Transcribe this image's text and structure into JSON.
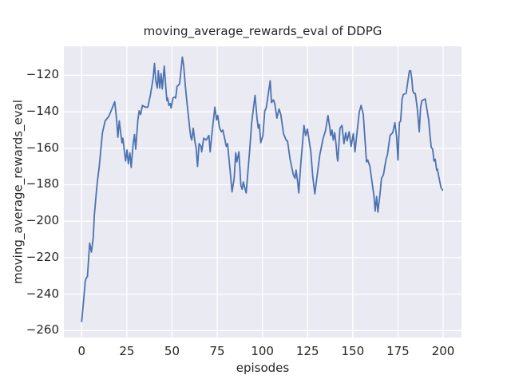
{
  "colors": {
    "figure_background": "#ffffff",
    "axes_background": "#eaeaf2",
    "grid": "#ffffff",
    "line": "#4c72b0",
    "text": "#262626"
  },
  "chart_data": {
    "type": "line",
    "title": "moving_average_rewards_eval of DDPG",
    "xlabel": "episodes",
    "ylabel": "moving_average_rewards_eval",
    "grid": true,
    "legend_position": "none",
    "style": "seaborn-darkgrid",
    "xlim": [
      -9.85,
      210.15
    ],
    "ylim": [
      -263.8,
      -104.1
    ],
    "x_ticks": [
      0,
      25,
      50,
      75,
      100,
      125,
      150,
      175,
      200
    ],
    "x_tick_labels": [
      "0",
      "25",
      "50",
      "75",
      "100",
      "125",
      "150",
      "175",
      "200"
    ],
    "y_ticks": [
      -260,
      -240,
      -220,
      -200,
      -180,
      -160,
      -140,
      -120
    ],
    "y_tick_labels": [
      "−260",
      "−240",
      "−220",
      "−200",
      "−180",
      "−160",
      "−140",
      "−120"
    ],
    "series": [
      {
        "name": "moving_average_rewards_eval",
        "color": "#4c72b0",
        "x": [
          0,
          1,
          2,
          2.6,
          3.2,
          4.4,
          5.4,
          6.4,
          7,
          8.5,
          9.7,
          11.5,
          13,
          15,
          16.5,
          18.3,
          19.3,
          20,
          20.8,
          21.4,
          22.3,
          22.8,
          23.7,
          24.3,
          25.1,
          25.8,
          26.7,
          27.4,
          28.5,
          29.2,
          29.9,
          31.1,
          31.8,
          32.6,
          33.6,
          35.1,
          36.6,
          38,
          39.5,
          40.3,
          41,
          41.9,
          42.4,
          43.2,
          43.9,
          44.6,
          45.7,
          46.6,
          47.2,
          47.6,
          48.3,
          49,
          49.5,
          50.5,
          51.3,
          52,
          52.8,
          53.5,
          54.2,
          55.7,
          56.4,
          56.9,
          57.5,
          58.3,
          59,
          59.8,
          60.4,
          60.9,
          61.7,
          62.8,
          63.3,
          64.1,
          65,
          66,
          66.4,
          67.5,
          68.9,
          70.4,
          71.1,
          72.5,
          73.7,
          74.6,
          75.3,
          76.3,
          77.3,
          78.1,
          79.3,
          80,
          80.7,
          81.5,
          82.2,
          83.2,
          84.4,
          85.2,
          85.9,
          87,
          88.1,
          88.8,
          89.4,
          91,
          91.8,
          93,
          94,
          95.9,
          97,
          97.7,
          98.3,
          99.1,
          100.3,
          101.3,
          102.1,
          104.3,
          105,
          106.1,
          106.8,
          108,
          109.2,
          110.2,
          111.7,
          113.1,
          113.9,
          115.3,
          117.1,
          118,
          118.6,
          119.5,
          120.1,
          121.3,
          122,
          123,
          123.9,
          124.9,
          126.8,
          127.8,
          129,
          130.3,
          131.8,
          133.5,
          135,
          136.3,
          137.3,
          137.8,
          138.5,
          139.2,
          140,
          140.7,
          141.4,
          141.7,
          142.9,
          144,
          145.1,
          146.1,
          146.9,
          148,
          149.1,
          150.3,
          151.2,
          152.5,
          153.6,
          154.6,
          155.8,
          156.6,
          157.6,
          158.3,
          159.5,
          161,
          161.7,
          162.4,
          163.2,
          163.9,
          165.2,
          165.9,
          167,
          168.4,
          169.2,
          170.6,
          172.1,
          173.3,
          174.3,
          175,
          175.8,
          176.5,
          177.3,
          178,
          179.5,
          181.3,
          182,
          182.7,
          183.2,
          183.9,
          184.6,
          185.7,
          186.8,
          187.5,
          188.2,
          189,
          190.1,
          192,
          192.7,
          193.4,
          194.2,
          194.9,
          195.6,
          196.4,
          196.8,
          197.8,
          198.8,
          199.7
        ],
        "y": [
          -255,
          -244,
          -233,
          -231,
          -230.5,
          -212,
          -217,
          -209,
          -197,
          -180,
          -170,
          -151.5,
          -145,
          -142.5,
          -139,
          -134.5,
          -144,
          -154,
          -145,
          -150,
          -157,
          -154.5,
          -162,
          -167,
          -161,
          -168.5,
          -162.5,
          -170.5,
          -157.5,
          -152.5,
          -160.5,
          -144.5,
          -139.5,
          -141.5,
          -136.5,
          -137.5,
          -137.5,
          -131,
          -122,
          -113.5,
          -123,
          -127,
          -117.5,
          -127,
          -119,
          -127.5,
          -115,
          -127.5,
          -134,
          -132.5,
          -136.5,
          -135.5,
          -138,
          -132.5,
          -132,
          -132.5,
          -126,
          -125.5,
          -124.5,
          -110,
          -114.5,
          -120.5,
          -127.5,
          -135.5,
          -142,
          -149.5,
          -154,
          -155.5,
          -149,
          -157.5,
          -159.5,
          -170,
          -157.5,
          -159,
          -162,
          -154.5,
          -155.5,
          -153,
          -162,
          -148,
          -137.5,
          -144.5,
          -142,
          -149,
          -151,
          -150,
          -155.5,
          -159,
          -157.5,
          -166,
          -173,
          -184,
          -176.5,
          -162.5,
          -167.5,
          -162,
          -180.5,
          -182.5,
          -178.5,
          -184.5,
          -175,
          -160.5,
          -146.5,
          -131,
          -143.5,
          -149,
          -147,
          -157,
          -153,
          -139.5,
          -138,
          -123,
          -135,
          -133.5,
          -135.5,
          -143.5,
          -138.5,
          -141.5,
          -152,
          -155.5,
          -156,
          -166,
          -174.5,
          -176.5,
          -172,
          -178.5,
          -184.5,
          -167.5,
          -159.5,
          -147.5,
          -153,
          -149.5,
          -162,
          -175,
          -185,
          -175,
          -163.5,
          -155,
          -150,
          -142,
          -149,
          -153,
          -150,
          -155.5,
          -151.5,
          -157.5,
          -165.5,
          -167,
          -149,
          -147.5,
          -157.5,
          -151.5,
          -156,
          -151,
          -159,
          -152,
          -162,
          -150,
          -140,
          -136.5,
          -141.5,
          -153,
          -167.5,
          -166.5,
          -170,
          -181,
          -186,
          -194.5,
          -186.5,
          -195,
          -184,
          -176.5,
          -174.5,
          -166,
          -163.5,
          -153,
          -151.5,
          -146,
          -154,
          -166.5,
          -146,
          -145,
          -133,
          -130.5,
          -130,
          -117.7,
          -117.5,
          -122.5,
          -128.5,
          -130,
          -130,
          -138.5,
          -151,
          -138,
          -134,
          -133.5,
          -133,
          -144.5,
          -152.5,
          -159.5,
          -160.5,
          -167,
          -166,
          -172,
          -171.5,
          -176.5,
          -181.5,
          -183
        ]
      }
    ]
  }
}
